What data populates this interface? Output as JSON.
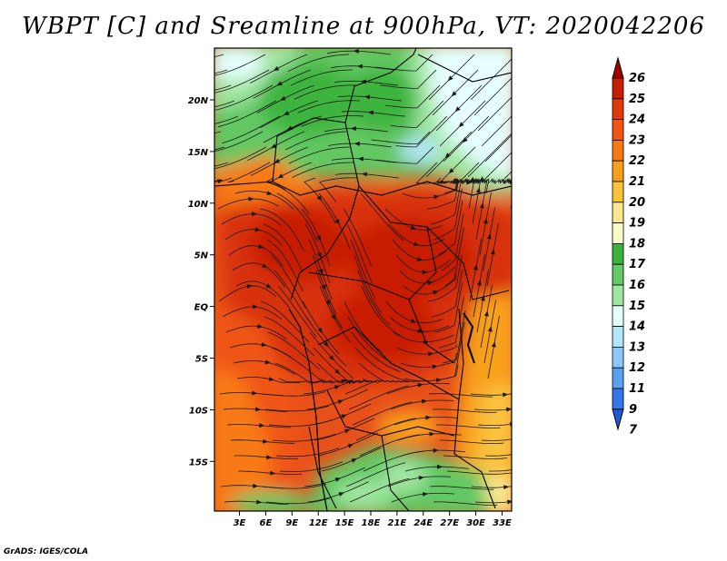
{
  "title": "WBPT [C] and Sreamline at 900hPa, VT: 2020042206",
  "credit": "GrADS: IGES/COLA",
  "map": {
    "lat_labels": [
      "20N",
      "15N",
      "10N",
      "5N",
      "EQ",
      "5S",
      "10S",
      "15S"
    ],
    "lon_labels": [
      "3E",
      "6E",
      "9E",
      "12E",
      "15E",
      "18E",
      "21E",
      "24E",
      "27E",
      "30E",
      "33E"
    ]
  },
  "colorbar": {
    "labels": [
      "26",
      "25",
      "24",
      "23",
      "22",
      "21",
      "20",
      "19",
      "18",
      "17",
      "16",
      "15",
      "14",
      "13",
      "12",
      "11",
      "9",
      "7"
    ],
    "colors": [
      "#a50000",
      "#c81e00",
      "#e03a0a",
      "#f05514",
      "#f87a14",
      "#f8a01e",
      "#fac33c",
      "#fae68c",
      "#fafac8",
      "#3cb43c",
      "#64c864",
      "#a0e6a0",
      "#e6ffff",
      "#b4e6fa",
      "#8cc8fa",
      "#5aa0f0",
      "#3278e6",
      "#1e5adc"
    ]
  }
}
